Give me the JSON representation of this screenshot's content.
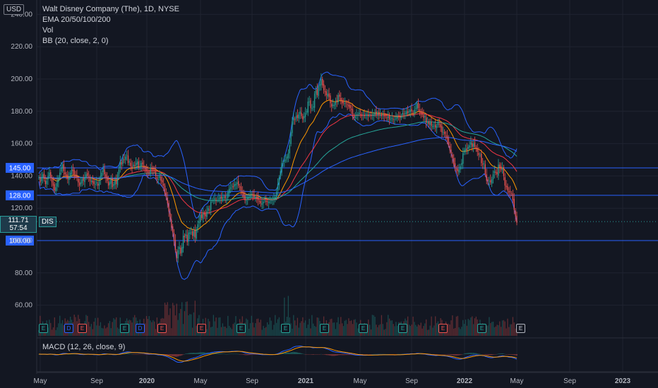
{
  "legend": {
    "title": "Walt Disney Company (The), 1D, NYSE",
    "ema": "EMA 20/50/100/200",
    "vol": "Vol",
    "bb": "BB (20, close, 2, 0)"
  },
  "currency_badge": "USD",
  "macd_label": "MACD (12, 26, close, 9)",
  "current": {
    "price": "111.71",
    "countdown": "57:54",
    "symbol": "DIS"
  },
  "colors": {
    "bg": "#131722",
    "up": "#26a69a",
    "down": "#ef5350",
    "hline": "#2962ff",
    "bb": "#2962ff",
    "ema_fast": "#ff9800",
    "ema_red": "#f23645",
    "ema_teal": "#26a69a",
    "ema_slow": "#2962ff"
  },
  "chart_data": {
    "type": "line",
    "title": "Walt Disney Company (The), 1D, NYSE",
    "y_ticks": [
      "60.00",
      "80.00",
      "100.00",
      "120.00",
      "140.00",
      "160.00",
      "180.00",
      "200.00",
      "220.00",
      "240.00"
    ],
    "ylim": [
      47,
      243
    ],
    "x_ticks": [
      "May",
      "Sep",
      "2020",
      "May",
      "Sep",
      "2021",
      "May",
      "Sep",
      "2022",
      "May",
      "Sep",
      "2023"
    ],
    "horizontal_levels": [
      {
        "label": "145.00",
        "value": 145
      },
      {
        "label": "128.00",
        "value": 128
      },
      {
        "label": "100.00",
        "value": 100
      }
    ],
    "series": [
      {
        "values": [
          139,
          136,
          139,
          141,
          138,
          135,
          137,
          140,
          142,
          139,
          136,
          134,
          131,
          133,
          137,
          139,
          142,
          145,
          147,
          143,
          141,
          140,
          138,
          139,
          142,
          144,
          143,
          141,
          140,
          139,
          136,
          134,
          136,
          138,
          137,
          139,
          141,
          140,
          139,
          137,
          137,
          136,
          135,
          135,
          136,
          134,
          137,
          140,
          142,
          145,
          141,
          139,
          137,
          134,
          136,
          138,
          133,
          135,
          137,
          135,
          141,
          144,
          149,
          147,
          151,
          150,
          152,
          153,
          148,
          149,
          146,
          145,
          147,
          146,
          148,
          149,
          145,
          146,
          148,
          147,
          145,
          144,
          143,
          142,
          142,
          145,
          144,
          144,
          143,
          140,
          138,
          138,
          140,
          137,
          136,
          134,
          129,
          127,
          123,
          118,
          113,
          108,
          105,
          100,
          94,
          89,
          94,
          96,
          92,
          96,
          103,
          102,
          104,
          99,
          105,
          105,
          105,
          103,
          106,
          102,
          107,
          110,
          112,
          116,
          114,
          117,
          116,
          115,
          118,
          120,
          119,
          124,
          125,
          125,
          126,
          125,
          125,
          126,
          127,
          126,
          127,
          127,
          126,
          126,
          130,
          132,
          133,
          134,
          133,
          135,
          135,
          136,
          134,
          133,
          131,
          130,
          127,
          125,
          125,
          127,
          127,
          128,
          129,
          128,
          127,
          127,
          126,
          125,
          124,
          123,
          123,
          124,
          125,
          124,
          124,
          124,
          124,
          125,
          125,
          126,
          127,
          130,
          135,
          139,
          143,
          148,
          148,
          150,
          150,
          152,
          154,
          159,
          167,
          174,
          176,
          175,
          177,
          176,
          178,
          180,
          177,
          175,
          177,
          179,
          180,
          186,
          186,
          182,
          182,
          183,
          191,
          193,
          190,
          195,
          197,
          200,
          196,
          193,
          192,
          190,
          191,
          189,
          185,
          183,
          184,
          184,
          186,
          186,
          190,
          189,
          187,
          185,
          185,
          185,
          185,
          184,
          183,
          182,
          181,
          178,
          176,
          177,
          178,
          178,
          179,
          178,
          177,
          178,
          177,
          178,
          178,
          177,
          178,
          177,
          178,
          178,
          179,
          178,
          179,
          178,
          178,
          177,
          178,
          177,
          177,
          176,
          177,
          175,
          175,
          176,
          175,
          175,
          176,
          177,
          177,
          176,
          177,
          179,
          178,
          179,
          180,
          179,
          180,
          181,
          180,
          179,
          181,
          182,
          185,
          182,
          180,
          179,
          178,
          176,
          177,
          173,
          173,
          172,
          173,
          171,
          171,
          171,
          170,
          171,
          173,
          172,
          170,
          167,
          167,
          166,
          165,
          163,
          159,
          156,
          154,
          151,
          147,
          145,
          144,
          143,
          144,
          146,
          148,
          154,
          156,
          157,
          156,
          158,
          159,
          161,
          158,
          160,
          158,
          157,
          155,
          153,
          153,
          148,
          147,
          148,
          141,
          137,
          137,
          137,
          136,
          138,
          141,
          143,
          142,
          141,
          147,
          145,
          144,
          145,
          140,
          134,
          133,
          131,
          130,
          130,
          129,
          125,
          119,
          115,
          111
        ],
        "note": "approximate daily close"
      },
      {
        "name": "EMA 20/50/100/200"
      },
      {
        "name": "BB (20, close, 2, 0)"
      },
      {
        "name": "Vol"
      },
      {
        "name": "MACD (12, 26, close, 9)"
      }
    ],
    "events": [
      {
        "type": "E",
        "x": "2019-05-09"
      },
      {
        "type": "D",
        "x": "2019-07-05"
      },
      {
        "type": "E",
        "x": "2019-08-06"
      },
      {
        "type": "E",
        "x": "2019-11-07"
      },
      {
        "type": "D",
        "x": "2019-12-12"
      },
      {
        "type": "E",
        "x": "2020-02-04"
      },
      {
        "type": "E",
        "x": "2020-05-05"
      },
      {
        "type": "E",
        "x": "2020-08-04"
      },
      {
        "type": "E",
        "x": "2020-11-12"
      },
      {
        "type": "E",
        "x": "2021-02-11"
      },
      {
        "type": "E",
        "x": "2021-05-13"
      },
      {
        "type": "E",
        "x": "2021-08-12"
      },
      {
        "type": "E",
        "x": "2021-11-10"
      },
      {
        "type": "E",
        "x": "2022-02-09"
      },
      {
        "type": "E",
        "x": "2022-05-11"
      }
    ]
  }
}
